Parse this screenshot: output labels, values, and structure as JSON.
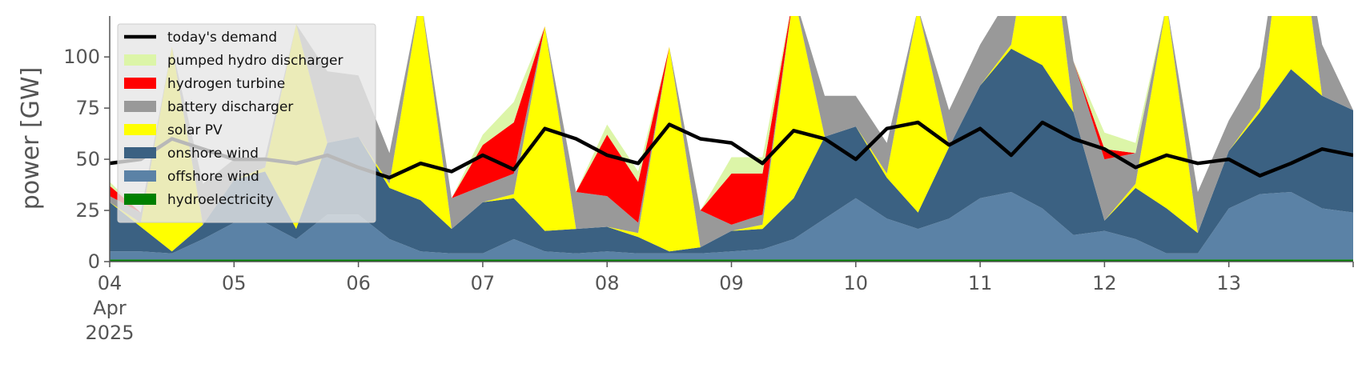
{
  "chart_data": {
    "type": "area",
    "title": "",
    "xlabel": "",
    "ylabel": "power [GW]",
    "ylim": [
      0,
      120
    ],
    "xlim": [
      "2025-04-04T00:00",
      "2025-04-14T00:00"
    ],
    "y_ticks": [
      0,
      25,
      50,
      75,
      100
    ],
    "x_ticks": [
      {
        "date": "2025-04-04",
        "label": "04",
        "sub": [
          "Apr",
          "2025"
        ]
      },
      {
        "date": "2025-04-05",
        "label": "05"
      },
      {
        "date": "2025-04-06",
        "label": "06"
      },
      {
        "date": "2025-04-07",
        "label": "07"
      },
      {
        "date": "2025-04-08",
        "label": "08"
      },
      {
        "date": "2025-04-09",
        "label": "09"
      },
      {
        "date": "2025-04-10",
        "label": "10"
      },
      {
        "date": "2025-04-11",
        "label": "11"
      },
      {
        "date": "2025-04-12",
        "label": "12"
      },
      {
        "date": "2025-04-13",
        "label": "13"
      }
    ],
    "grid": false,
    "legend_position": "top-left",
    "x": [
      "2025-04-04T00:00",
      "2025-04-04T06:00",
      "2025-04-04T12:00",
      "2025-04-04T18:00",
      "2025-04-05T00:00",
      "2025-04-05T06:00",
      "2025-04-05T12:00",
      "2025-04-05T18:00",
      "2025-04-06T00:00",
      "2025-04-06T06:00",
      "2025-04-06T12:00",
      "2025-04-06T18:00",
      "2025-04-07T00:00",
      "2025-04-07T06:00",
      "2025-04-07T12:00",
      "2025-04-07T18:00",
      "2025-04-08T00:00",
      "2025-04-08T06:00",
      "2025-04-08T12:00",
      "2025-04-08T18:00",
      "2025-04-09T00:00",
      "2025-04-09T06:00",
      "2025-04-09T12:00",
      "2025-04-09T18:00",
      "2025-04-10T00:00",
      "2025-04-10T06:00",
      "2025-04-10T12:00",
      "2025-04-10T18:00",
      "2025-04-11T00:00",
      "2025-04-11T06:00",
      "2025-04-11T12:00",
      "2025-04-11T18:00",
      "2025-04-12T00:00",
      "2025-04-12T06:00",
      "2025-04-12T12:00",
      "2025-04-12T18:00",
      "2025-04-13T00:00",
      "2025-04-13T06:00",
      "2025-04-13T12:00",
      "2025-04-13T18:00",
      "2025-04-14T00:00"
    ],
    "series": [
      {
        "name": "hydroelectricity",
        "color": "#008000",
        "values": [
          1,
          1,
          1,
          1,
          1,
          1,
          1,
          1,
          1,
          1,
          1,
          1,
          1,
          1,
          1,
          1,
          1,
          1,
          1,
          1,
          1,
          1,
          1,
          1,
          1,
          1,
          1,
          1,
          1,
          1,
          1,
          1,
          1,
          1,
          1,
          1,
          1,
          1,
          1,
          1,
          1
        ]
      },
      {
        "name": "offshore wind",
        "color": "#5b82a6",
        "values": [
          4,
          4,
          3,
          10,
          18,
          18,
          10,
          22,
          22,
          10,
          4,
          3,
          3,
          10,
          4,
          3,
          4,
          3,
          3,
          3,
          4,
          5,
          10,
          20,
          30,
          20,
          15,
          20,
          30,
          33,
          25,
          12,
          14,
          10,
          3,
          3,
          25,
          32,
          33,
          25,
          23
        ]
      },
      {
        "name": "onshore wind",
        "color": "#3b6182",
        "values": [
          24,
          12,
          1,
          7,
          21,
          25,
          5,
          35,
          38,
          25,
          25,
          12,
          25,
          20,
          10,
          12,
          12,
          8,
          1,
          3,
          10,
          10,
          20,
          40,
          35,
          20,
          8,
          35,
          55,
          70,
          70,
          60,
          5,
          25,
          22,
          10,
          28,
          40,
          60,
          55,
          50
        ]
      },
      {
        "name": "solar PV",
        "color": "#ffff00",
        "values": [
          0,
          2,
          100,
          0,
          0,
          2,
          100,
          0,
          0,
          2,
          100,
          0,
          0,
          2,
          100,
          0,
          0,
          2,
          100,
          0,
          0,
          2,
          100,
          0,
          0,
          2,
          100,
          0,
          0,
          2,
          100,
          0,
          0,
          2,
          100,
          0,
          0,
          2,
          100,
          0,
          0
        ]
      },
      {
        "name": "battery discharger",
        "color": "#999999",
        "values": [
          3,
          5,
          0,
          20,
          10,
          5,
          0,
          35,
          30,
          15,
          0,
          15,
          8,
          10,
          0,
          18,
          15,
          5,
          0,
          18,
          3,
          5,
          0,
          20,
          15,
          15,
          0,
          18,
          20,
          25,
          0,
          25,
          30,
          15,
          0,
          20,
          15,
          20,
          0,
          25,
          0
        ]
      },
      {
        "name": "hydrogen turbine",
        "color": "#ff0000",
        "values": [
          5,
          0,
          0,
          0,
          0,
          0,
          0,
          0,
          0,
          0,
          0,
          0,
          20,
          25,
          0,
          0,
          30,
          20,
          0,
          0,
          25,
          20,
          0,
          0,
          0,
          0,
          0,
          0,
          0,
          0,
          0,
          0,
          5,
          0,
          0,
          0,
          0,
          0,
          0,
          0,
          0
        ]
      },
      {
        "name": "pumped hydro discharger",
        "color": "#dcf5a8",
        "values": [
          2,
          0,
          0,
          0,
          0,
          0,
          0,
          0,
          0,
          0,
          0,
          0,
          5,
          10,
          0,
          0,
          5,
          5,
          0,
          0,
          8,
          8,
          0,
          0,
          0,
          0,
          0,
          0,
          0,
          0,
          0,
          0,
          8,
          5,
          0,
          0,
          0,
          0,
          0,
          0,
          0
        ]
      }
    ],
    "demand": {
      "name": "today's demand",
      "color": "#000000",
      "values": [
        48,
        50,
        60,
        55,
        50,
        50,
        48,
        52,
        46,
        41,
        48,
        44,
        52,
        45,
        65,
        60,
        52,
        48,
        67,
        60,
        58,
        48,
        64,
        60,
        50,
        65,
        68,
        57,
        65,
        52,
        68,
        60,
        55,
        46,
        52,
        48,
        50,
        42,
        48,
        55,
        52
      ]
    },
    "legend": [
      {
        "label": "today's demand",
        "color": "#000000",
        "kind": "line"
      },
      {
        "label": "pumped hydro discharger",
        "color": "#dcf5a8",
        "kind": "patch"
      },
      {
        "label": "hydrogen turbine",
        "color": "#ff0000",
        "kind": "patch"
      },
      {
        "label": "battery discharger",
        "color": "#999999",
        "kind": "patch"
      },
      {
        "label": "solar PV",
        "color": "#ffff00",
        "kind": "patch"
      },
      {
        "label": "onshore wind",
        "color": "#3b6182",
        "kind": "patch"
      },
      {
        "label": "offshore wind",
        "color": "#5b82a6",
        "kind": "patch"
      },
      {
        "label": "hydroelectricity",
        "color": "#008000",
        "kind": "patch"
      }
    ]
  }
}
